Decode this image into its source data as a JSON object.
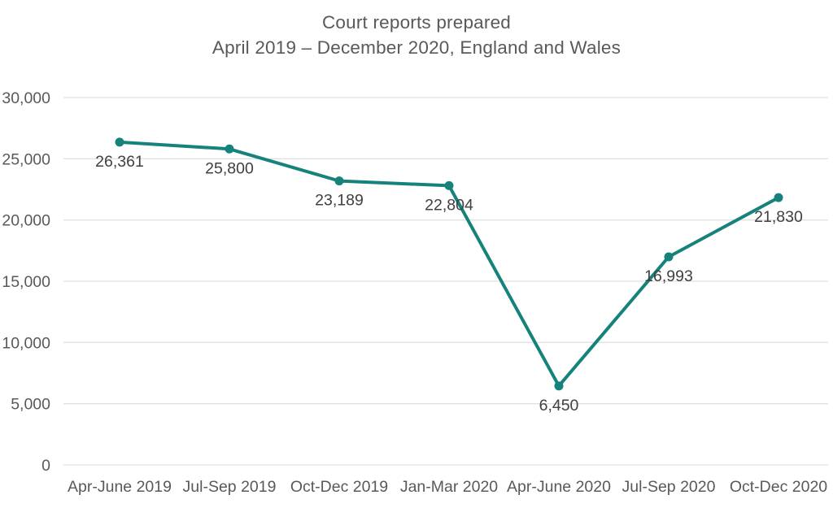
{
  "title": {
    "line1": "Court reports prepared",
    "line2": "April 2019 – December 2020, England and Wales"
  },
  "chart_data": {
    "type": "line",
    "title": "Court reports prepared",
    "subtitle": "April 2019 – December 2020, England and Wales",
    "categories": [
      "Apr-June 2019",
      "Jul-Sep 2019",
      "Oct-Dec 2019",
      "Jan-Mar 2020",
      "Apr-June 2020",
      "Jul-Sep 2020",
      "Oct-Dec 2020"
    ],
    "series": [
      {
        "name": "Court reports prepared",
        "values": [
          26361,
          25800,
          23189,
          22804,
          6450,
          16993,
          21830
        ]
      }
    ],
    "data_labels": [
      "26,361",
      "25,800",
      "23,189",
      "22,804",
      "6,450",
      "16,993",
      "21,830"
    ],
    "xlabel": "",
    "ylabel": "",
    "ylim": [
      0,
      30000
    ],
    "ytick_interval": 5000,
    "ytick_labels": [
      "0",
      "5,000",
      "10,000",
      "15,000",
      "20,000",
      "25,000",
      "30,000"
    ],
    "grid": true,
    "legend_position": "none",
    "colors": {
      "line": "#15837C",
      "marker": "#15837C",
      "gridline": "#E1E1E1",
      "axis_text": "#595959",
      "data_label_text": "#404040",
      "title_text": "#595959",
      "background": "#FFFFFF"
    }
  }
}
